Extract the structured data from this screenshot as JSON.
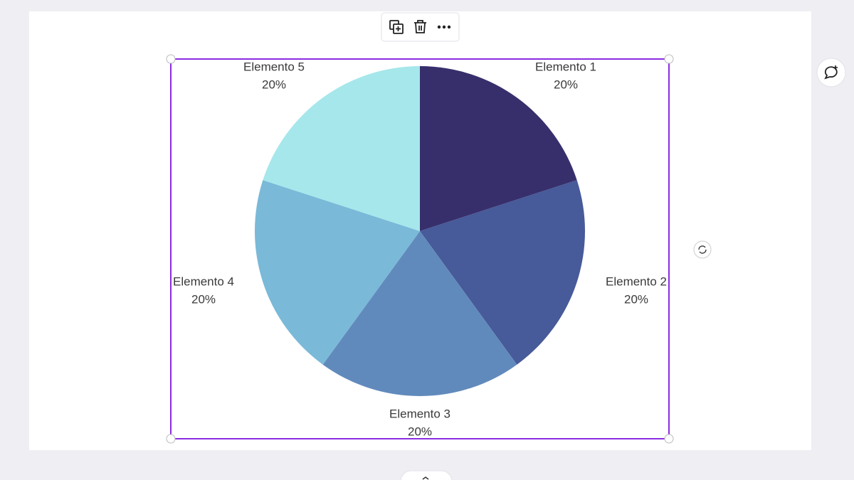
{
  "chart_data": {
    "type": "pie",
    "categories": [
      "Elemento 1",
      "Elemento 2",
      "Elemento 3",
      "Elemento 4",
      "Elemento 5"
    ],
    "values": [
      20,
      20,
      20,
      20,
      20
    ],
    "value_labels": [
      "20%",
      "20%",
      "20%",
      "20%",
      "20%"
    ],
    "colors": [
      "#372f6c",
      "#475a99",
      "#618abc",
      "#7ab9d8",
      "#a6e7eb"
    ]
  }
}
